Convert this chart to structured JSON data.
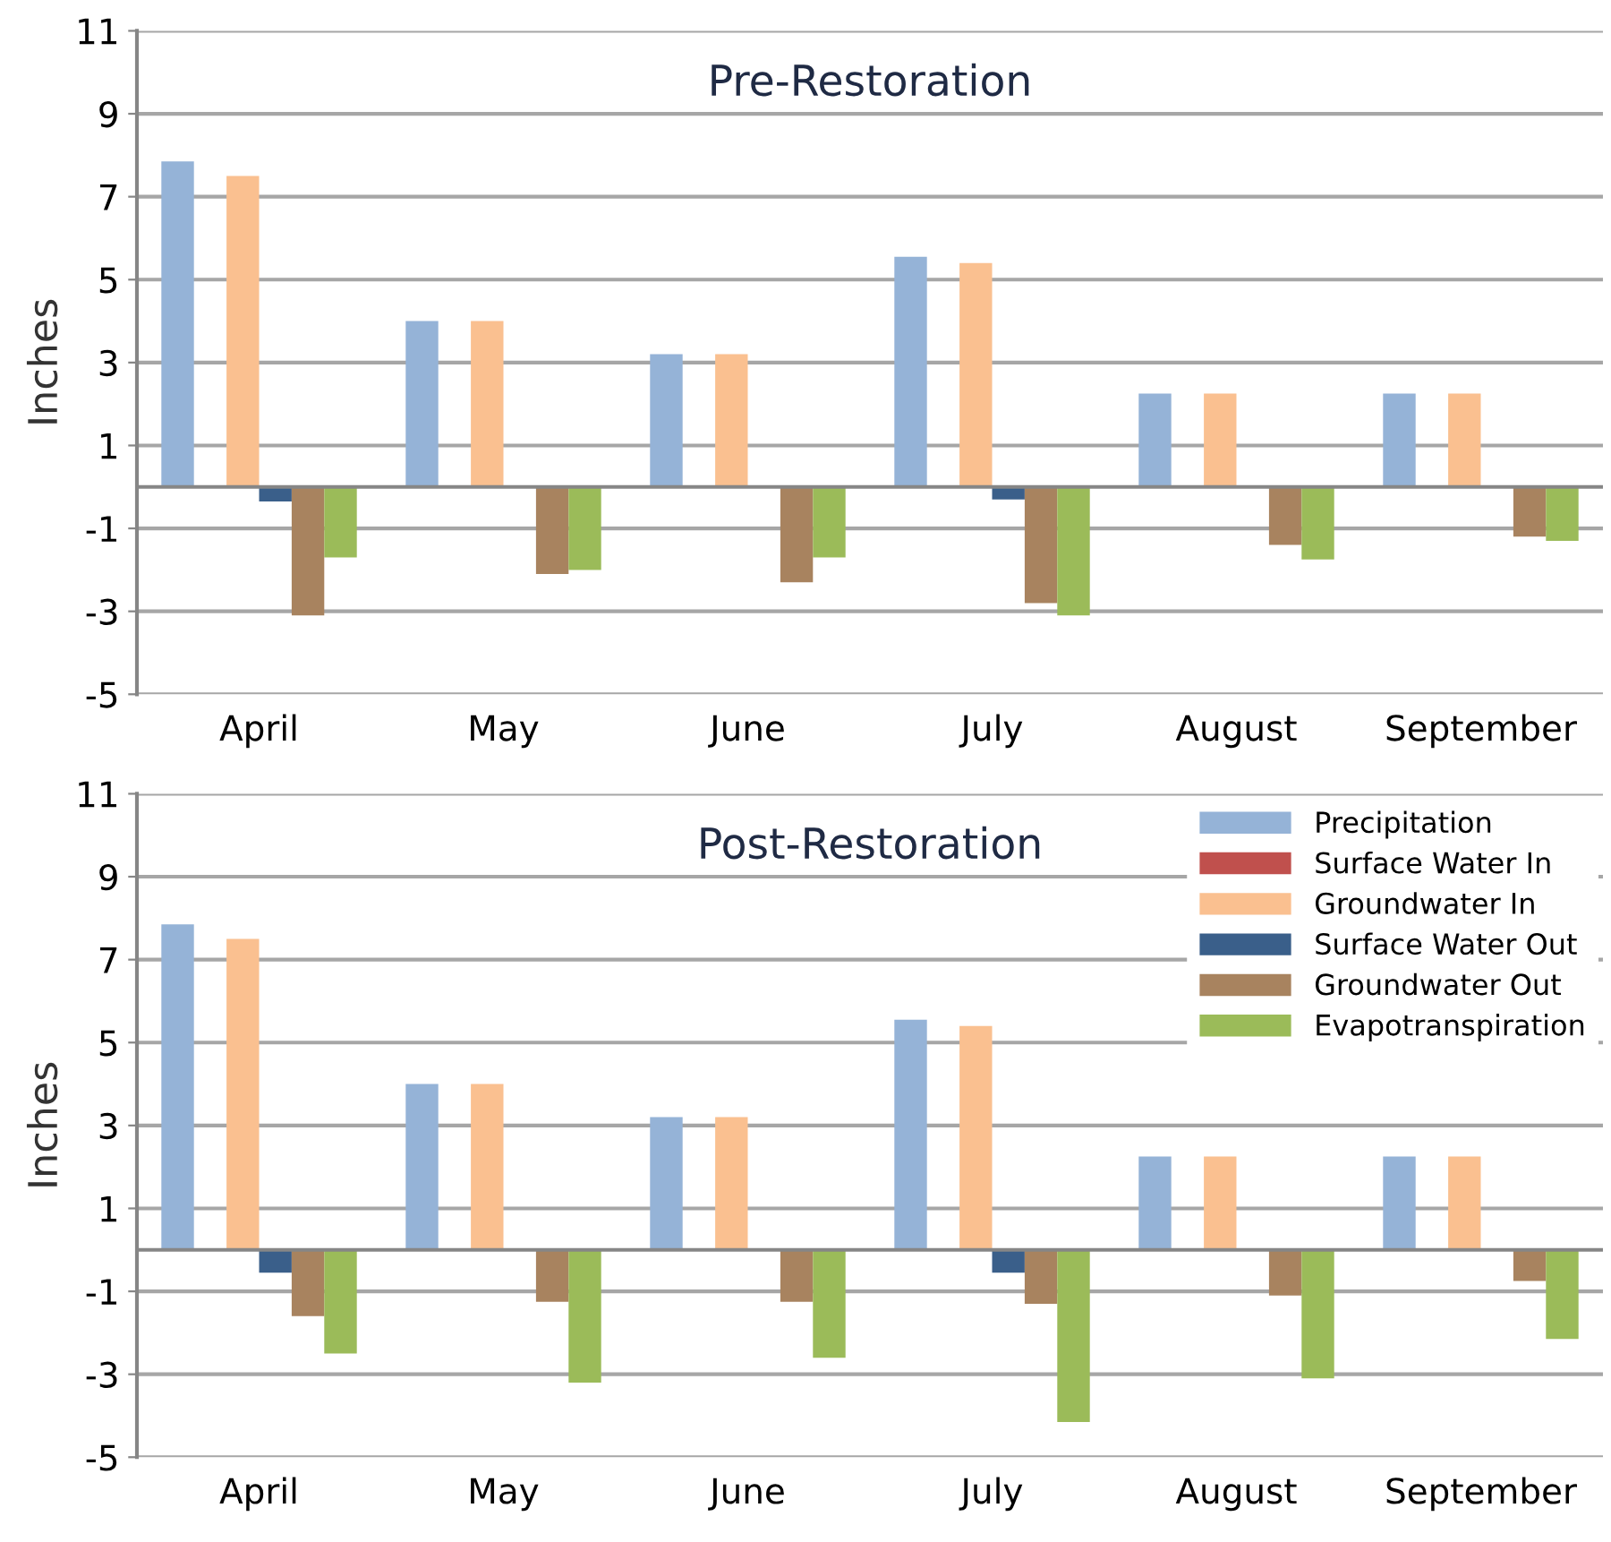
{
  "chart_data": [
    {
      "type": "bar",
      "title": "Pre-Restoration",
      "ylabel": "Inches",
      "categories": [
        "April",
        "May",
        "June",
        "July",
        "August",
        "September"
      ],
      "ylim": [
        -5,
        11
      ],
      "yticks": [
        -5,
        -3,
        -1,
        1,
        3,
        5,
        7,
        9,
        11
      ],
      "grid": "y",
      "series": [
        {
          "color": "#95b3d7",
          "values": [
            7.85,
            4.0,
            3.2,
            5.55,
            2.25,
            2.25
          ]
        },
        {
          "color": "#c0504d",
          "values": [
            0,
            0,
            0,
            0,
            0,
            0
          ]
        },
        {
          "color": "#fac090",
          "values": [
            7.5,
            4.0,
            3.2,
            5.4,
            2.25,
            2.25
          ]
        },
        {
          "color": "#3a5f8a",
          "values": [
            -0.35,
            0,
            0,
            -0.3,
            0,
            0
          ]
        },
        {
          "color": "#a8835f",
          "values": [
            -3.1,
            -2.1,
            -2.3,
            -2.8,
            -1.4,
            -1.2
          ]
        },
        {
          "color": "#9bbb59",
          "values": [
            -1.7,
            -2.0,
            -1.7,
            -3.1,
            -1.75,
            -1.3
          ]
        }
      ]
    },
    {
      "type": "bar",
      "title": "Post-Restoration",
      "ylabel": "Inches",
      "categories": [
        "April",
        "May",
        "June",
        "July",
        "August",
        "September"
      ],
      "ylim": [
        -5,
        11
      ],
      "yticks": [
        -5,
        -3,
        -1,
        1,
        3,
        5,
        7,
        9,
        11
      ],
      "grid": "y",
      "legend": "top right",
      "series": [
        {
          "name": "Precipitation",
          "color": "#95b3d7",
          "values": [
            7.85,
            4.0,
            3.2,
            5.55,
            2.25,
            2.25
          ]
        },
        {
          "name": "Surface Water In",
          "color": "#c0504d",
          "values": [
            0,
            0,
            0,
            0,
            0,
            0
          ]
        },
        {
          "name": "Groundwater In",
          "color": "#fac090",
          "values": [
            7.5,
            4.0,
            3.2,
            5.4,
            2.25,
            2.25
          ]
        },
        {
          "name": "Surface Water Out",
          "color": "#3a5f8a",
          "values": [
            -0.55,
            0,
            0,
            -0.55,
            0,
            0
          ]
        },
        {
          "name": "Groundwater Out",
          "color": "#a8835f",
          "values": [
            -1.6,
            -1.25,
            -1.25,
            -1.3,
            -1.1,
            -0.75
          ]
        },
        {
          "name": "Evapotranspiration",
          "color": "#9bbb59",
          "values": [
            -2.5,
            -3.2,
            -2.6,
            -4.15,
            -3.1,
            -2.15
          ]
        }
      ]
    }
  ]
}
